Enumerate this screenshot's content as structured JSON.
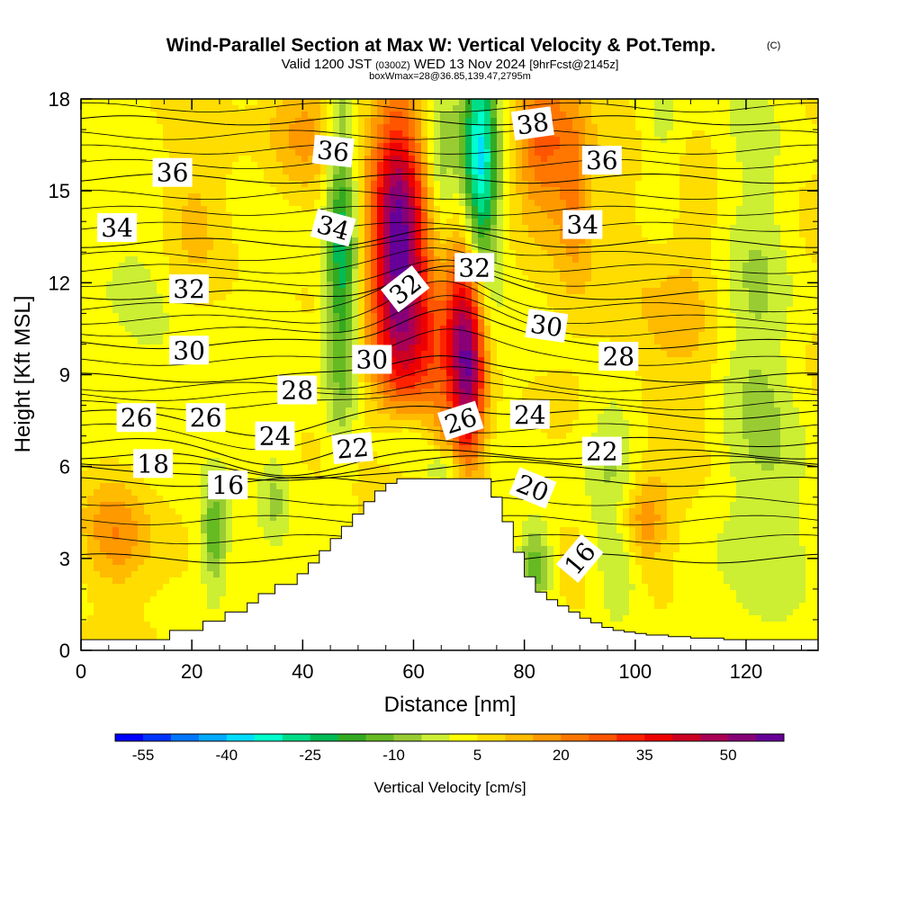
{
  "title": {
    "main": "Wind-Parallel Section at Max W: Vertical Velocity & Pot.Temp.",
    "copyright": "(C)",
    "valid_prefix": "Valid 1200 JST",
    "valid_z": "(0300Z)",
    "valid_date": "WED 13 Nov 2024",
    "fcst": "[9hrFcst@2145z]",
    "box": "boxWmax=28@36.85,139.47,2795m"
  },
  "chart_data": {
    "type": "heatmap",
    "xlabel": "Distance [nm]",
    "ylabel": "Height [Kft MSL]",
    "xlim": [
      0,
      133
    ],
    "ylim": [
      0,
      18
    ],
    "x_ticks": [
      0,
      20,
      40,
      60,
      80,
      100,
      120
    ],
    "x_tick_labels": [
      "0",
      "20",
      "40",
      "60",
      "80",
      "100",
      "120"
    ],
    "y_ticks": [
      0,
      3,
      6,
      9,
      12,
      15,
      18
    ],
    "y_tick_labels": [
      "0",
      "3",
      "6",
      "9",
      "12",
      "15",
      "18"
    ],
    "colorbar": {
      "label": "Vertical Velocity [cm/s]",
      "min": -60,
      "max": 60,
      "step": 5,
      "tick_values": [
        -55,
        -40,
        -25,
        -10,
        5,
        20,
        35,
        50
      ],
      "tick_labels": [
        "-55",
        "-40",
        "-25",
        "-10",
        "5",
        "20",
        "35",
        "50"
      ],
      "colors": [
        "#0000ff",
        "#0033ff",
        "#0077ff",
        "#00aaff",
        "#00ddff",
        "#00ffcc",
        "#00dd88",
        "#00bb55",
        "#33aa22",
        "#66bb22",
        "#99cc33",
        "#ccee33",
        "#ffff00",
        "#ffdd00",
        "#ffbb00",
        "#ff9900",
        "#ff7700",
        "#ff5500",
        "#ff2200",
        "#ee0000",
        "#cc0022",
        "#aa0055",
        "#880077",
        "#660099"
      ]
    },
    "terrain": {
      "x": [
        0,
        16,
        16,
        22,
        22,
        26,
        26,
        30,
        30,
        32,
        32,
        35,
        35,
        39,
        39,
        41,
        41,
        43,
        43,
        45,
        45,
        47,
        47,
        49,
        49,
        51,
        51,
        53,
        53,
        55,
        55,
        57,
        57,
        59,
        59,
        64,
        64,
        74,
        74,
        76,
        76,
        78,
        78,
        80,
        80,
        82,
        82,
        84,
        84,
        86,
        86,
        88,
        88,
        90,
        90,
        92,
        92,
        94,
        94,
        96,
        96,
        98,
        98,
        100,
        100,
        102,
        102,
        106,
        106,
        110,
        110,
        116,
        116,
        122,
        122,
        133
      ],
      "y": [
        0.35,
        0.35,
        0.65,
        0.65,
        0.95,
        0.95,
        1.25,
        1.25,
        1.55,
        1.55,
        1.85,
        1.85,
        2.15,
        2.15,
        2.5,
        2.5,
        2.85,
        2.85,
        3.25,
        3.25,
        3.65,
        3.65,
        4.05,
        4.05,
        4.45,
        4.45,
        4.85,
        4.85,
        5.2,
        5.2,
        5.45,
        5.45,
        5.6,
        5.6,
        5.6,
        5.6,
        5.6,
        5.6,
        5.0,
        5.0,
        4.2,
        4.2,
        3.2,
        3.2,
        2.4,
        2.4,
        1.9,
        1.9,
        1.65,
        1.65,
        1.45,
        1.45,
        1.25,
        1.25,
        1.05,
        1.05,
        0.9,
        0.9,
        0.75,
        0.75,
        0.65,
        0.65,
        0.6,
        0.6,
        0.55,
        0.55,
        0.5,
        0.5,
        0.45,
        0.45,
        0.4,
        0.4,
        0.35,
        0.35,
        0.35,
        0.35
      ]
    },
    "w_features": [
      {
        "x": 57,
        "y": 13.5,
        "sx": 3.2,
        "sy": 3.2,
        "value": 45
      },
      {
        "x": 61,
        "y": 10.0,
        "sx": 4.5,
        "sy": 3.5,
        "value": 22
      },
      {
        "x": 70,
        "y": 9.0,
        "sx": 2.2,
        "sy": 2.5,
        "value": 40
      },
      {
        "x": 68,
        "y": 11.0,
        "sx": 3.0,
        "sy": 2.0,
        "value": 20
      },
      {
        "x": 83,
        "y": 16.5,
        "sx": 3.5,
        "sy": 1.8,
        "value": 22
      },
      {
        "x": 89,
        "y": 15.0,
        "sx": 2.2,
        "sy": 2.0,
        "value": 14
      },
      {
        "x": 20,
        "y": 14.5,
        "sx": 5.0,
        "sy": 2.5,
        "value": 10
      },
      {
        "x": 40,
        "y": 17.0,
        "sx": 5.0,
        "sy": 1.5,
        "value": 12
      },
      {
        "x": 6,
        "y": 3.8,
        "sx": 4.0,
        "sy": 1.2,
        "value": 14
      },
      {
        "x": 101,
        "y": 4.2,
        "sx": 3.5,
        "sy": 1.0,
        "value": 18
      },
      {
        "x": 47,
        "y": 13.0,
        "sx": 2.0,
        "sy": 4.0,
        "value": -28
      },
      {
        "x": 65,
        "y": 15.0,
        "sx": 2.0,
        "sy": 2.8,
        "value": -14
      },
      {
        "x": 72,
        "y": 16.0,
        "sx": 2.2,
        "sy": 3.0,
        "value": -38
      },
      {
        "x": 66,
        "y": 7.0,
        "sx": 2.5,
        "sy": 0.8,
        "value": 8
      },
      {
        "x": 59,
        "y": 6.8,
        "sx": 4.0,
        "sy": 1.0,
        "value": -20
      },
      {
        "x": 66,
        "y": 5.9,
        "sx": 3.0,
        "sy": 0.5,
        "value": -14
      },
      {
        "x": 24,
        "y": 3.8,
        "sx": 1.6,
        "sy": 1.2,
        "value": -18
      },
      {
        "x": 35,
        "y": 5.0,
        "sx": 1.5,
        "sy": 1.0,
        "value": -8
      },
      {
        "x": 12,
        "y": 12.5,
        "sx": 6.0,
        "sy": 4.0,
        "value": -8
      },
      {
        "x": 96,
        "y": 6.5,
        "sx": 4.0,
        "sy": 1.5,
        "value": -12
      },
      {
        "x": 97,
        "y": 3.0,
        "sx": 3.0,
        "sy": 1.5,
        "value": -14
      },
      {
        "x": 82,
        "y": 2.8,
        "sx": 2.0,
        "sy": 1.0,
        "value": -18
      },
      {
        "x": 108,
        "y": 12.0,
        "sx": 6.0,
        "sy": 4.5,
        "value": 10
      },
      {
        "x": 122,
        "y": 10.0,
        "sx": 4.5,
        "sy": 6.0,
        "value": -10
      },
      {
        "x": 128,
        "y": 4.0,
        "sx": 4.0,
        "sy": 3.0,
        "value": -6
      },
      {
        "x": 105,
        "y": 16.0,
        "sx": 3.0,
        "sy": 2.5,
        "value": -10
      }
    ],
    "theta_base": [
      {
        "theta": 10,
        "h": 0.0
      },
      {
        "theta": 14,
        "h": 3.0
      },
      {
        "theta": 16,
        "h": 5.5
      },
      {
        "theta": 18,
        "h": 6.0
      },
      {
        "theta": 20,
        "h": 6.2
      },
      {
        "theta": 22,
        "h": 6.4
      },
      {
        "theta": 24,
        "h": 6.8
      },
      {
        "theta": 26,
        "h": 7.7
      },
      {
        "theta": 28,
        "h": 8.9
      },
      {
        "theta": 30,
        "h": 10.0
      },
      {
        "theta": 32,
        "h": 11.6
      },
      {
        "theta": 34,
        "h": 13.3
      },
      {
        "theta": 36,
        "h": 15.4
      },
      {
        "theta": 38,
        "h": 17.3
      },
      {
        "theta": 40,
        "h": 19.0
      }
    ],
    "contour_labels": [
      {
        "text": "36",
        "x": 16.5,
        "y": 15.6,
        "angle": 0
      },
      {
        "text": "34",
        "x": 6.5,
        "y": 13.8,
        "angle": 0
      },
      {
        "text": "32",
        "x": 19.5,
        "y": 11.8,
        "angle": 0
      },
      {
        "text": "30",
        "x": 19.5,
        "y": 9.8,
        "angle": 0
      },
      {
        "text": "26",
        "x": 10.0,
        "y": 7.6,
        "angle": 0
      },
      {
        "text": "26",
        "x": 22.5,
        "y": 7.6,
        "angle": 0
      },
      {
        "text": "28",
        "x": 39.0,
        "y": 8.5,
        "angle": 0
      },
      {
        "text": "24",
        "x": 35.0,
        "y": 7.0,
        "angle": 0
      },
      {
        "text": "18",
        "x": 13.0,
        "y": 6.1,
        "angle": 0
      },
      {
        "text": "16",
        "x": 26.5,
        "y": 5.4,
        "angle": 0
      },
      {
        "text": "22",
        "x": 49.0,
        "y": 6.6,
        "angle": -5
      },
      {
        "text": "36",
        "x": 45.5,
        "y": 16.3,
        "angle": 6
      },
      {
        "text": "34",
        "x": 45.5,
        "y": 13.8,
        "angle": 15
      },
      {
        "text": "32",
        "x": 58.5,
        "y": 11.8,
        "angle": -38
      },
      {
        "text": "30",
        "x": 52.5,
        "y": 9.5,
        "angle": 0
      },
      {
        "text": "32",
        "x": 71.0,
        "y": 12.5,
        "angle": 0
      },
      {
        "text": "38",
        "x": 81.5,
        "y": 17.2,
        "angle": -8
      },
      {
        "text": "36",
        "x": 94.0,
        "y": 16.0,
        "angle": 0
      },
      {
        "text": "34",
        "x": 90.5,
        "y": 13.9,
        "angle": 0
      },
      {
        "text": "30",
        "x": 84.0,
        "y": 10.6,
        "angle": 8
      },
      {
        "text": "28",
        "x": 97.0,
        "y": 9.6,
        "angle": 0
      },
      {
        "text": "26",
        "x": 68.5,
        "y": 7.5,
        "angle": -18
      },
      {
        "text": "24",
        "x": 81.0,
        "y": 7.7,
        "angle": 0
      },
      {
        "text": "22",
        "x": 94.0,
        "y": 6.5,
        "angle": 0
      },
      {
        "text": "20",
        "x": 81.5,
        "y": 5.3,
        "angle": 22
      },
      {
        "text": "16",
        "x": 90.0,
        "y": 3.0,
        "angle": -50
      }
    ]
  }
}
